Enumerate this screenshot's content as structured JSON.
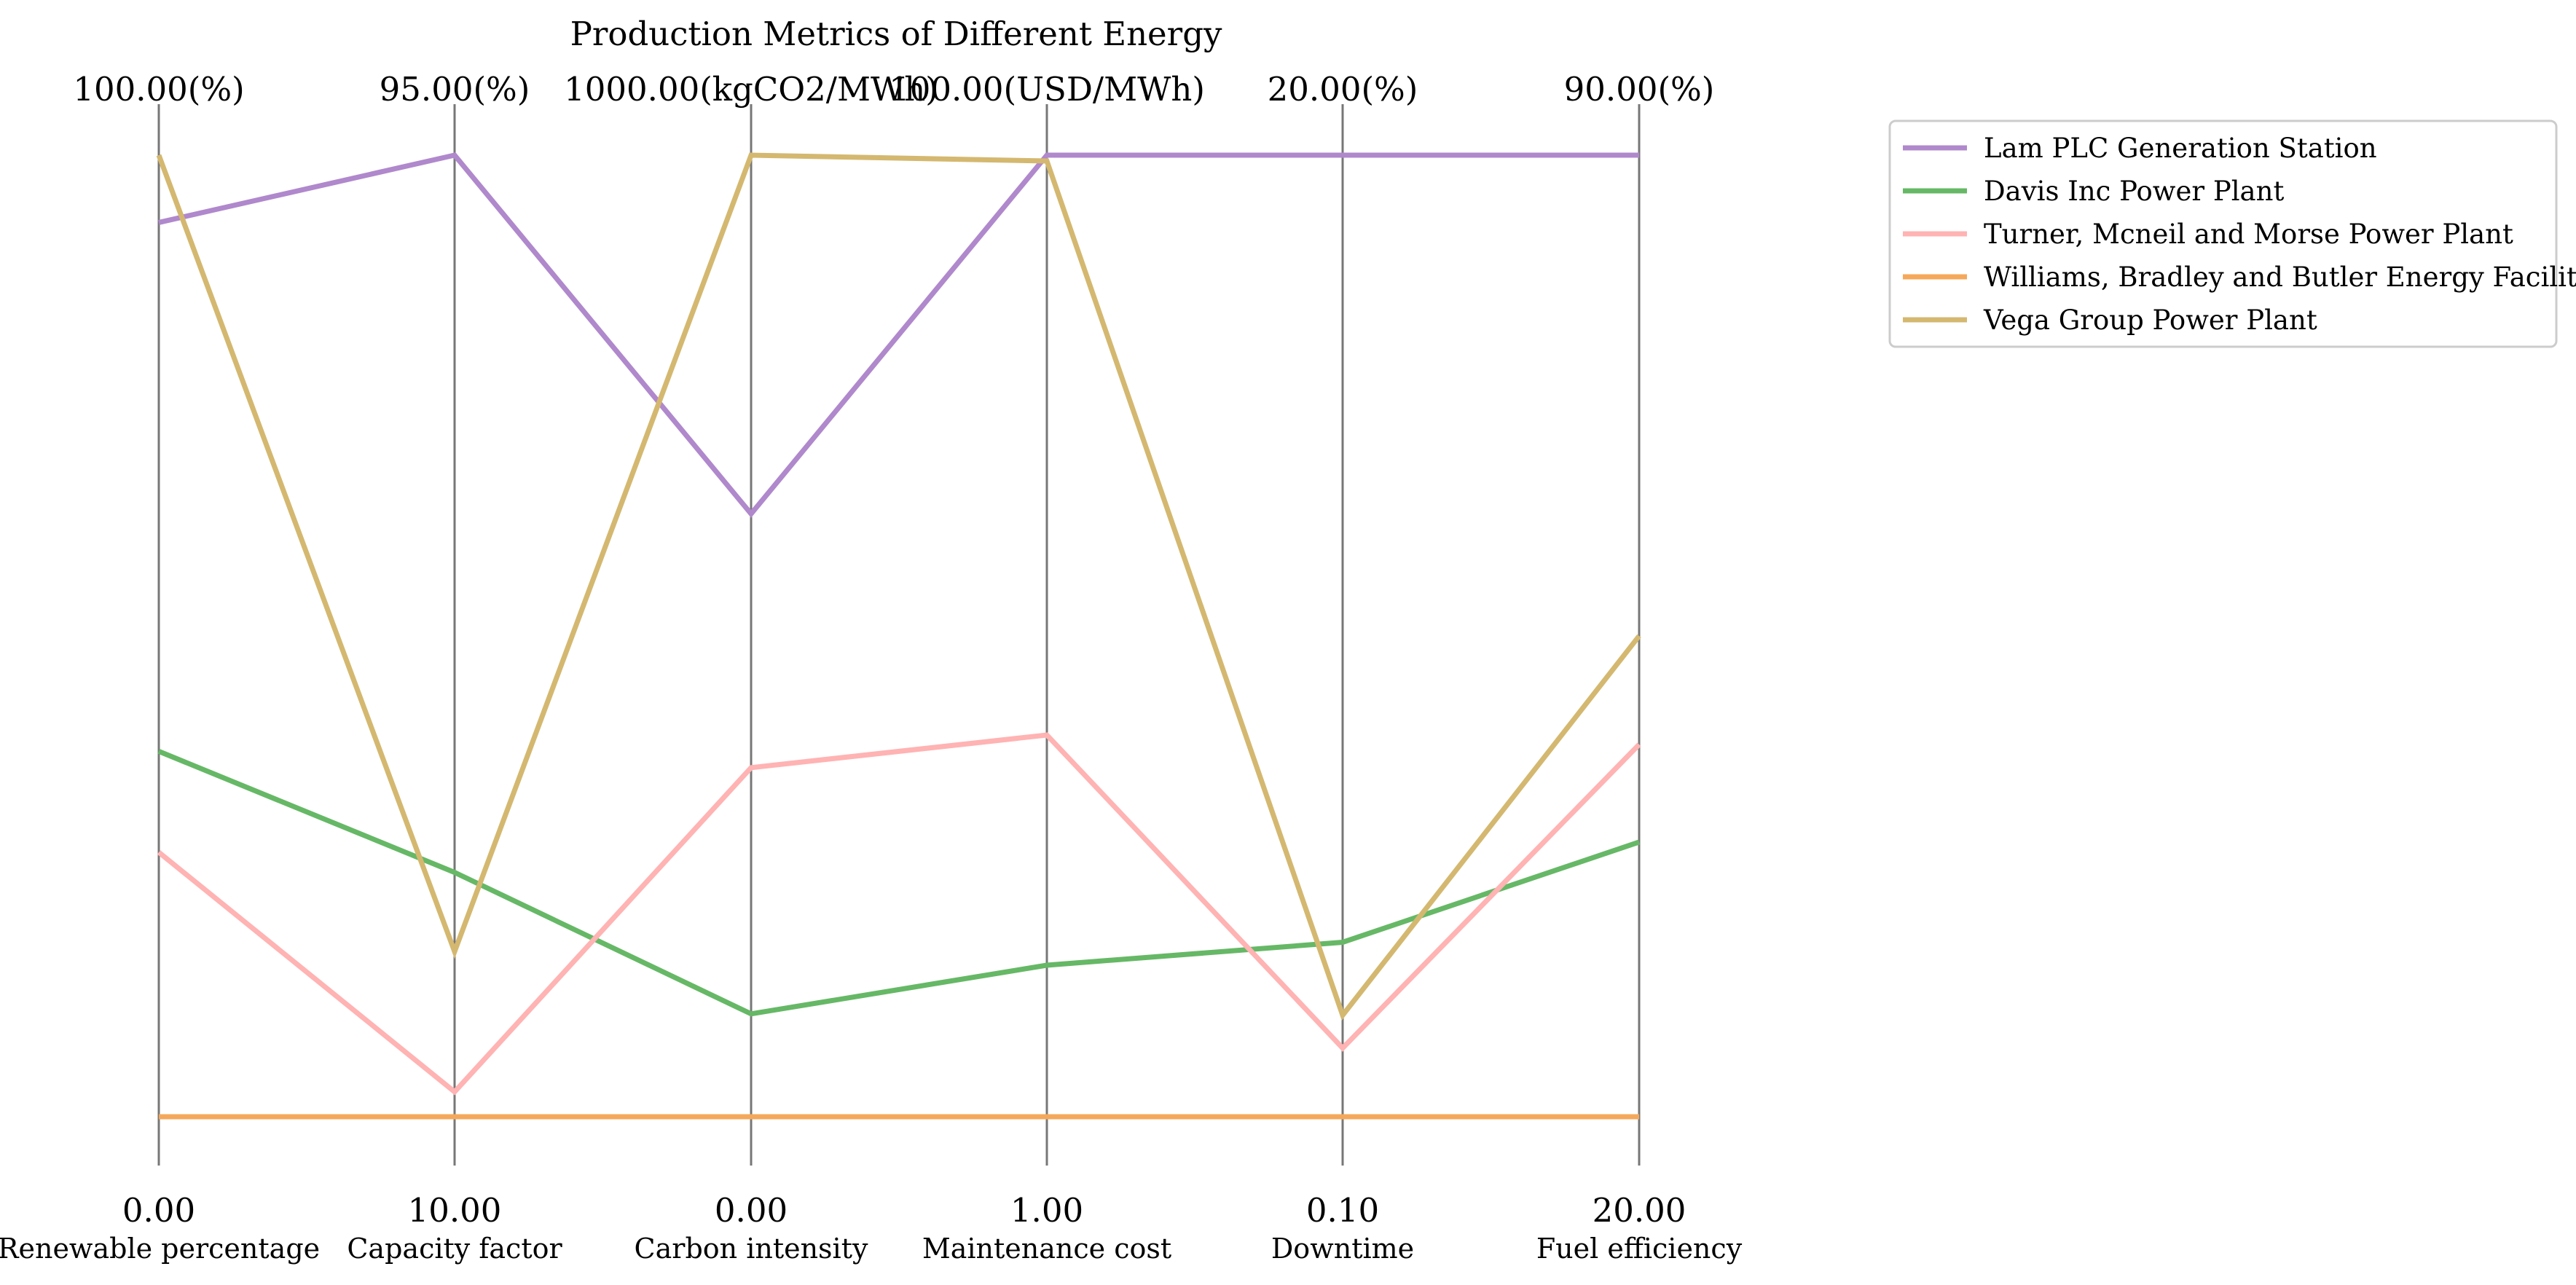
{
  "chart_data": {
    "type": "parallel-coordinates",
    "title": "Production Metrics of Different Energy",
    "axes": [
      {
        "name": "Renewable percentage",
        "min_label": "0.00",
        "max_label": "100.00(%)",
        "min": 0,
        "max": 100
      },
      {
        "name": "Capacity factor",
        "min_label": "10.00",
        "max_label": "95.00(%)",
        "min": 10,
        "max": 95
      },
      {
        "name": "Carbon intensity",
        "min_label": "0.00",
        "max_label": "1000.00(kgCO2/MWh)",
        "min": 0,
        "max": 1000
      },
      {
        "name": "Maintenance cost",
        "min_label": "1.00",
        "max_label": "100.00(USD/MWh)",
        "min": 1,
        "max": 100
      },
      {
        "name": "Downtime",
        "min_label": "0.10",
        "max_label": "20.00(%)",
        "min": 0.1,
        "max": 20
      },
      {
        "name": "Fuel efficiency",
        "min_label": "20.00",
        "max_label": "90.00(%)",
        "min": 20,
        "max": 90
      }
    ],
    "series": [
      {
        "name": "Lam PLC  Generation Station",
        "color": "#b088cc",
        "values": [
          93,
          95,
          627,
          100,
          20,
          90
        ]
      },
      {
        "name": "Davis Inc  Power Plant",
        "color": "#66b866",
        "values": [
          38,
          31.6,
          107,
          16.6,
          3.71,
          40
        ]
      },
      {
        "name": "Turner, Mcneil and Morse  Power Plant",
        "color": "#ffb3b3",
        "values": [
          27.5,
          12.2,
          363,
          40.3,
          1.52,
          47.1
        ]
      },
      {
        "name": "Williams, Bradley and Butler  Energy Facility",
        "color": "#f5a85a",
        "values": [
          0,
          10,
          0,
          1,
          0.1,
          20
        ]
      },
      {
        "name": "Vega Group  Power Plant",
        "color": "#d4b870",
        "values": [
          100,
          24.6,
          1000,
          99.4,
          2.2,
          55
        ]
      }
    ],
    "legend": "top-right",
    "grid": false
  }
}
